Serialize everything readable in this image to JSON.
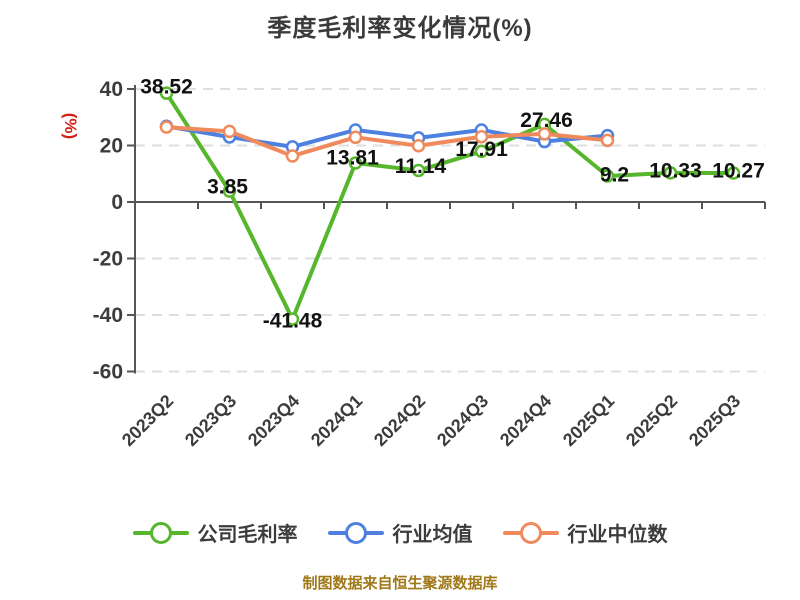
{
  "title": "季度毛利率变化情况(%)",
  "footer": "制图数据来自恒生聚源数据库",
  "colors": {
    "company": "#56b62c",
    "industry_avg": "#4d80e0",
    "industry_median": "#f08a5c",
    "axis": "#555555",
    "grid": "#dedede",
    "tick_text": "#3c3c3c",
    "data_label": "#111111",
    "y_unit": "#d42015",
    "footer": "#a07818",
    "title": "#3a3a3a"
  },
  "chart_data": {
    "type": "line",
    "title": "季度毛利率变化情况(%)",
    "xlabel": "",
    "ylabel": "(%)",
    "ylim": [
      -60,
      40
    ],
    "y_ticks": [
      40,
      20,
      0,
      -20,
      -40,
      -60
    ],
    "grid": "horizontal dashed",
    "legend_position": "bottom",
    "categories": [
      "2023Q2",
      "2023Q3",
      "2023Q4",
      "2024Q1",
      "2024Q2",
      "2024Q3",
      "2024Q4",
      "2025Q1",
      "2025Q2",
      "2025Q3"
    ],
    "series": [
      {
        "name": "公司毛利率",
        "color": "#56b62c",
        "values": [
          38.52,
          3.85,
          -41.48,
          13.81,
          11.14,
          17.91,
          27.46,
          9.2,
          10.33,
          10.27
        ],
        "point_labels": [
          "38.52",
          "3.85",
          "-41.48",
          "13.81",
          "11.14",
          "17.91",
          "27.46",
          "9.2",
          "10.33",
          "10.27"
        ],
        "label_offsets": [
          [
            0,
            -6
          ],
          [
            -2,
            -4
          ],
          [
            0,
            2
          ],
          [
            -3,
            -5
          ],
          [
            2,
            -4
          ],
          [
            0,
            -2
          ],
          [
            2,
            -4
          ],
          [
            7,
            -1
          ],
          [
            5,
            -2
          ],
          [
            5,
            -2
          ]
        ]
      },
      {
        "name": "行业均值",
        "color": "#4d80e0",
        "values": [
          26.8,
          23.0,
          19.5,
          25.5,
          22.7,
          25.5,
          21.4,
          23.5
        ],
        "point_labels": null,
        "label_offsets": null
      },
      {
        "name": "行业中位数",
        "color": "#f08a5c",
        "values": [
          26.5,
          25.0,
          16.3,
          22.9,
          19.9,
          23.1,
          24.1,
          21.8
        ],
        "point_labels": null,
        "label_offsets": null
      }
    ]
  }
}
